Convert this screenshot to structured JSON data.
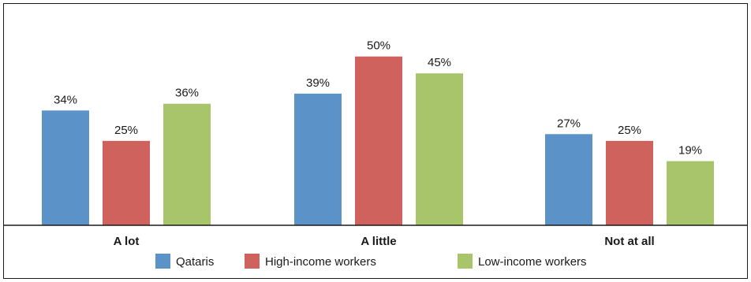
{
  "chart_data": {
    "type": "bar",
    "categories": [
      "A lot",
      "A little",
      "Not at all"
    ],
    "series": [
      {
        "name": "Qataris",
        "values": [
          34,
          39,
          27
        ],
        "labels": [
          "34%",
          "39%",
          "27%"
        ],
        "color": "#5b93c8"
      },
      {
        "name": "High-income workers",
        "values": [
          25,
          50,
          25
        ],
        "labels": [
          "25%",
          "50%",
          "25%"
        ],
        "color": "#d0625d"
      },
      {
        "name": "Low-income workers",
        "values": [
          36,
          45,
          19
        ],
        "labels": [
          "36%",
          "45%",
          "19%"
        ],
        "color": "#a8c56c"
      }
    ],
    "ylim": [
      0,
      56
    ],
    "grid": false,
    "legend_position": "bottom"
  }
}
